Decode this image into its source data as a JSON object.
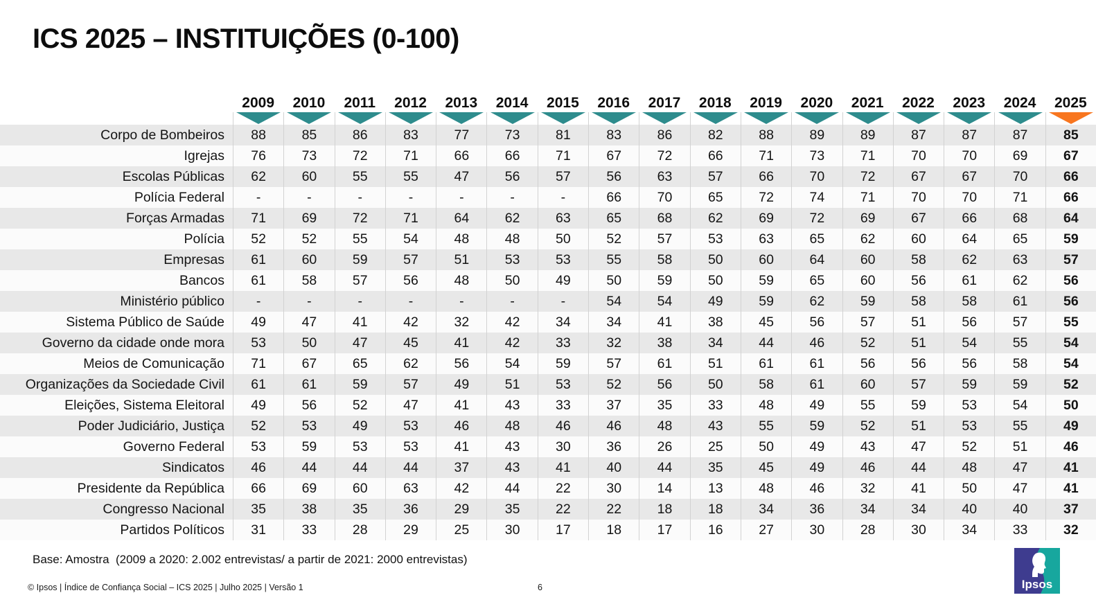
{
  "title": "ICS 2025 – INSTITUIÇÕES (0-100)",
  "colors": {
    "teal": "#2E8C8D",
    "orange": "#F8761F",
    "row_gray": "#E8E8E8",
    "row_white": "#FBFBFB",
    "separator": "#D2D2D2",
    "logo_blue": "#3E3C8F",
    "logo_teal": "#17A79E"
  },
  "chart_data": {
    "type": "table",
    "title": "ICS 2025 – INSTITUIÇÕES (0-100)",
    "scale": "0-100",
    "years": [
      "2009",
      "2010",
      "2011",
      "2012",
      "2013",
      "2014",
      "2015",
      "2016",
      "2017",
      "2018",
      "2019",
      "2020",
      "2021",
      "2022",
      "2023",
      "2024",
      "2025"
    ],
    "highlight_year": "2025",
    "rows": [
      {
        "label": "Corpo de Bombeiros",
        "values": [
          88,
          85,
          86,
          83,
          77,
          73,
          81,
          83,
          86,
          82,
          88,
          89,
          89,
          87,
          87,
          87,
          85
        ]
      },
      {
        "label": "Igrejas",
        "values": [
          76,
          73,
          72,
          71,
          66,
          66,
          71,
          67,
          72,
          66,
          71,
          73,
          71,
          70,
          70,
          69,
          67
        ]
      },
      {
        "label": "Escolas Públicas",
        "values": [
          62,
          60,
          55,
          55,
          47,
          56,
          57,
          56,
          63,
          57,
          66,
          70,
          72,
          67,
          67,
          70,
          66
        ]
      },
      {
        "label": "Polícia Federal",
        "values": [
          "-",
          "-",
          "-",
          "-",
          "-",
          "-",
          "-",
          66,
          70,
          65,
          72,
          74,
          71,
          70,
          70,
          71,
          66
        ]
      },
      {
        "label": "Forças Armadas",
        "values": [
          71,
          69,
          72,
          71,
          64,
          62,
          63,
          65,
          68,
          62,
          69,
          72,
          69,
          67,
          66,
          68,
          64
        ]
      },
      {
        "label": "Polícia",
        "values": [
          52,
          52,
          55,
          54,
          48,
          48,
          50,
          52,
          57,
          53,
          63,
          65,
          62,
          60,
          64,
          65,
          59
        ]
      },
      {
        "label": "Empresas",
        "values": [
          61,
          60,
          59,
          57,
          51,
          53,
          53,
          55,
          58,
          50,
          60,
          64,
          60,
          58,
          62,
          63,
          57
        ]
      },
      {
        "label": "Bancos",
        "values": [
          61,
          58,
          57,
          56,
          48,
          50,
          49,
          50,
          59,
          50,
          59,
          65,
          60,
          56,
          61,
          62,
          56
        ]
      },
      {
        "label": "Ministério público",
        "values": [
          "-",
          "-",
          "-",
          "-",
          "-",
          "-",
          "-",
          54,
          54,
          49,
          59,
          62,
          59,
          58,
          58,
          61,
          56
        ]
      },
      {
        "label": "Sistema Público de Saúde",
        "values": [
          49,
          47,
          41,
          42,
          32,
          42,
          34,
          34,
          41,
          38,
          45,
          56,
          57,
          51,
          56,
          57,
          55
        ]
      },
      {
        "label": "Governo da cidade onde mora",
        "values": [
          53,
          50,
          47,
          45,
          41,
          42,
          33,
          32,
          38,
          34,
          44,
          46,
          52,
          51,
          54,
          55,
          54
        ]
      },
      {
        "label": "Meios de Comunicação",
        "values": [
          71,
          67,
          65,
          62,
          56,
          54,
          59,
          57,
          61,
          51,
          61,
          61,
          56,
          56,
          56,
          58,
          54
        ]
      },
      {
        "label": "Organizações da Sociedade Civil",
        "values": [
          61,
          61,
          59,
          57,
          49,
          51,
          53,
          52,
          56,
          50,
          58,
          61,
          60,
          57,
          59,
          59,
          52
        ]
      },
      {
        "label": "Eleições, Sistema Eleitoral",
        "values": [
          49,
          56,
          52,
          47,
          41,
          43,
          33,
          37,
          35,
          33,
          48,
          49,
          55,
          59,
          53,
          54,
          50
        ]
      },
      {
        "label": "Poder Judiciário, Justiça",
        "values": [
          52,
          53,
          49,
          53,
          46,
          48,
          46,
          46,
          48,
          43,
          55,
          59,
          52,
          51,
          53,
          55,
          49
        ]
      },
      {
        "label": "Governo Federal",
        "values": [
          53,
          59,
          53,
          53,
          41,
          43,
          30,
          36,
          26,
          25,
          50,
          49,
          43,
          47,
          52,
          51,
          46
        ]
      },
      {
        "label": "Sindicatos",
        "values": [
          46,
          44,
          44,
          44,
          37,
          43,
          41,
          40,
          44,
          35,
          45,
          49,
          46,
          44,
          48,
          47,
          41
        ]
      },
      {
        "label": "Presidente da República",
        "values": [
          66,
          69,
          60,
          63,
          42,
          44,
          22,
          30,
          14,
          13,
          48,
          46,
          32,
          41,
          50,
          47,
          41
        ]
      },
      {
        "label": "Congresso Nacional",
        "values": [
          35,
          38,
          35,
          36,
          29,
          35,
          22,
          22,
          18,
          18,
          34,
          36,
          34,
          34,
          40,
          40,
          37
        ]
      },
      {
        "label": "Partidos Políticos",
        "values": [
          31,
          33,
          28,
          29,
          25,
          30,
          17,
          18,
          17,
          16,
          27,
          30,
          28,
          30,
          34,
          33,
          32
        ]
      }
    ]
  },
  "footer": {
    "base": "Base: Amostra  (2009 a 2020: 2.002 entrevistas/ a partir de 2021: 2000 entrevistas)",
    "copyright": "© Ipsos | Índice de Confiança Social – ICS 2025 | Julho 2025 | Versão 1",
    "page": "6"
  },
  "logo": {
    "text": "Ipsos"
  }
}
